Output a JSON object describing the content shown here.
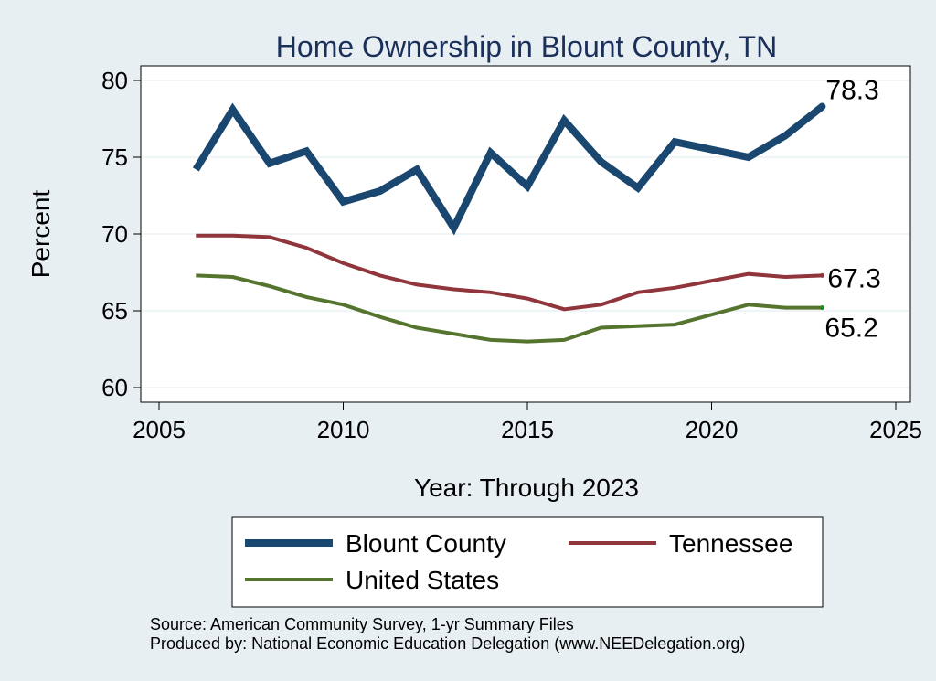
{
  "chart_data": {
    "type": "line",
    "title": "Home Ownership in Blount County, TN",
    "xlabel": "Year: Through 2023",
    "ylabel": "Percent",
    "xlim": [
      2005,
      2025
    ],
    "ylim": [
      60,
      80
    ],
    "xticks": [
      2005,
      2010,
      2015,
      2020,
      2025
    ],
    "yticks": [
      60,
      65,
      70,
      75,
      80
    ],
    "grid": true,
    "legend_position": "bottom",
    "series": [
      {
        "name": "Blount County",
        "color": "#1a476f",
        "end_label": "78.3",
        "x": [
          2006,
          2007,
          2008,
          2009,
          2010,
          2011,
          2012,
          2013,
          2014,
          2015,
          2016,
          2017,
          2018,
          2019,
          2021,
          2022,
          2023
        ],
        "values": [
          74.2,
          78.1,
          74.6,
          75.4,
          72.1,
          72.8,
          74.2,
          70.4,
          75.3,
          73.1,
          77.4,
          74.7,
          73.0,
          76.0,
          75.0,
          76.4,
          78.3
        ]
      },
      {
        "name": "Tennessee",
        "color": "#90353b",
        "end_label": "67.3",
        "x": [
          2006,
          2007,
          2008,
          2009,
          2010,
          2011,
          2012,
          2013,
          2014,
          2015,
          2016,
          2017,
          2018,
          2019,
          2021,
          2022,
          2023
        ],
        "values": [
          69.9,
          69.9,
          69.8,
          69.1,
          68.1,
          67.3,
          66.7,
          66.4,
          66.2,
          65.8,
          65.1,
          65.4,
          66.2,
          66.5,
          67.4,
          67.2,
          67.3
        ]
      },
      {
        "name": "United States",
        "color": "#55752f",
        "end_label": "65.2",
        "x": [
          2006,
          2007,
          2008,
          2009,
          2010,
          2011,
          2012,
          2013,
          2014,
          2015,
          2016,
          2017,
          2018,
          2019,
          2021,
          2022,
          2023
        ],
        "values": [
          67.3,
          67.2,
          66.6,
          65.9,
          65.4,
          64.6,
          63.9,
          63.5,
          63.1,
          63.0,
          63.1,
          63.9,
          64.0,
          64.1,
          65.4,
          65.2,
          65.2
        ]
      }
    ],
    "source_note": "Source: American Community Survey, 1-yr Summary Files",
    "credit_note": "Produced by: National Economic Education Delegation (www.NEEDelegation.org)"
  }
}
